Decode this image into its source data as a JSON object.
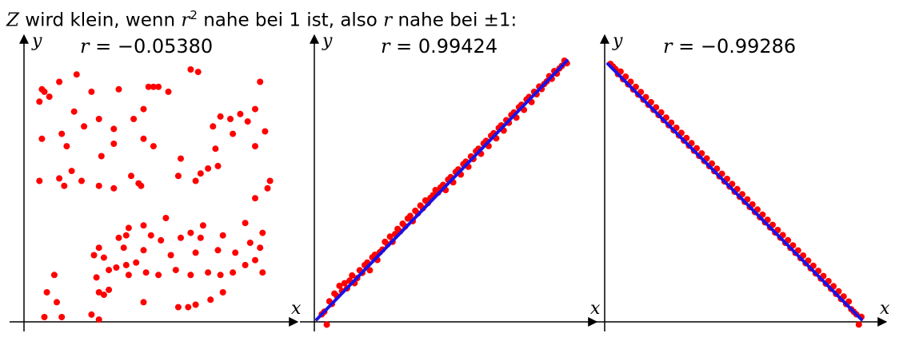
{
  "caption": {
    "pre": "Z",
    "t1": " wird klein, wenn ",
    "r": "r",
    "exp": "2",
    "t2": " nahe bei 1 ist, also ",
    "r2": "r",
    "t3": " nahe bei ±1:"
  },
  "chart_data": [
    {
      "type": "scatter",
      "title": "r = −0.05380",
      "r_symbol": "r",
      "r_text": "= −0.05380",
      "xlabel": "x",
      "ylabel": "y",
      "xlim": [
        0,
        1
      ],
      "ylim": [
        0,
        1
      ],
      "regression_line": false,
      "point_color": "#ff0000",
      "points": [
        [
          0.03,
          0.87
        ],
        [
          0.04,
          0.92
        ],
        [
          0.05,
          0.91
        ],
        [
          0.07,
          0.89
        ],
        [
          0.11,
          0.95
        ],
        [
          0.18,
          0.98
        ],
        [
          0.24,
          0.91
        ],
        [
          0.35,
          0.92
        ],
        [
          0.47,
          0.93
        ],
        [
          0.49,
          0.93
        ],
        [
          0.51,
          0.93
        ],
        [
          0.55,
          0.91
        ],
        [
          0.64,
          1.0
        ],
        [
          0.67,
          0.99
        ],
        [
          0.92,
          0.95
        ],
        [
          0.04,
          0.72
        ],
        [
          0.12,
          0.74
        ],
        [
          0.17,
          0.83
        ],
        [
          0.27,
          0.8
        ],
        [
          0.33,
          0.76
        ],
        [
          0.41,
          0.8
        ],
        [
          0.45,
          0.84
        ],
        [
          0.73,
          0.77
        ],
        [
          0.76,
          0.81
        ],
        [
          0.8,
          0.8
        ],
        [
          0.84,
          0.82
        ],
        [
          0.87,
          0.79
        ],
        [
          0.9,
          0.84
        ],
        [
          0.94,
          0.75
        ],
        [
          0.14,
          0.69
        ],
        [
          0.21,
          0.77
        ],
        [
          0.28,
          0.65
        ],
        [
          0.33,
          0.7
        ],
        [
          0.45,
          0.72
        ],
        [
          0.49,
          0.69
        ],
        [
          0.6,
          0.64
        ],
        [
          0.74,
          0.68
        ],
        [
          0.81,
          0.74
        ],
        [
          0.9,
          0.69
        ],
        [
          0.03,
          0.55
        ],
        [
          0.11,
          0.56
        ],
        [
          0.13,
          0.53
        ],
        [
          0.16,
          0.59
        ],
        [
          0.2,
          0.55
        ],
        [
          0.27,
          0.53
        ],
        [
          0.33,
          0.52
        ],
        [
          0.4,
          0.57
        ],
        [
          0.43,
          0.54
        ],
        [
          0.44,
          0.53
        ],
        [
          0.59,
          0.57
        ],
        [
          0.66,
          0.55
        ],
        [
          0.68,
          0.58
        ],
        [
          0.71,
          0.6
        ],
        [
          0.75,
          0.61
        ],
        [
          0.9,
          0.48
        ],
        [
          0.95,
          0.52
        ],
        [
          0.96,
          0.55
        ],
        [
          0.39,
          0.36
        ],
        [
          0.45,
          0.37
        ],
        [
          0.54,
          0.4
        ],
        [
          0.64,
          0.34
        ],
        [
          0.69,
          0.37
        ],
        [
          0.86,
          0.38
        ],
        [
          0.35,
          0.32
        ],
        [
          0.38,
          0.33
        ],
        [
          0.48,
          0.33
        ],
        [
          0.52,
          0.31
        ],
        [
          0.6,
          0.32
        ],
        [
          0.68,
          0.32
        ],
        [
          0.77,
          0.33
        ],
        [
          0.93,
          0.34
        ],
        [
          0.27,
          0.28
        ],
        [
          0.37,
          0.28
        ],
        [
          0.45,
          0.27
        ],
        [
          0.56,
          0.25
        ],
        [
          0.66,
          0.26
        ],
        [
          0.75,
          0.27
        ],
        [
          0.82,
          0.26
        ],
        [
          0.88,
          0.3
        ],
        [
          0.92,
          0.28
        ],
        [
          0.25,
          0.25
        ],
        [
          0.29,
          0.24
        ],
        [
          0.34,
          0.2
        ],
        [
          0.38,
          0.21
        ],
        [
          0.42,
          0.22
        ],
        [
          0.26,
          0.16
        ],
        [
          0.31,
          0.19
        ],
        [
          0.39,
          0.17
        ],
        [
          0.46,
          0.18
        ],
        [
          0.51,
          0.17
        ],
        [
          0.58,
          0.19
        ],
        [
          0.64,
          0.17
        ],
        [
          0.71,
          0.18
        ],
        [
          0.76,
          0.17
        ],
        [
          0.81,
          0.18
        ],
        [
          0.86,
          0.21
        ],
        [
          0.9,
          0.23
        ],
        [
          0.93,
          0.18
        ],
        [
          0.09,
          0.17
        ],
        [
          0.06,
          0.1
        ],
        [
          0.1,
          0.06
        ],
        [
          0.27,
          0.1
        ],
        [
          0.29,
          0.09
        ],
        [
          0.31,
          0.11
        ],
        [
          0.45,
          0.06
        ],
        [
          0.59,
          0.04
        ],
        [
          0.63,
          0.04
        ],
        [
          0.66,
          0.05
        ],
        [
          0.72,
          0.07
        ],
        [
          0.05,
          0.0
        ],
        [
          0.12,
          0.0
        ],
        [
          0.24,
          0.01
        ],
        [
          0.27,
          -0.01
        ],
        [
          0.77,
          0.1
        ]
      ]
    },
    {
      "type": "scatter",
      "title": "r = 0.99424",
      "r_symbol": "r",
      "r_text": "= 0.99424",
      "xlabel": "x",
      "ylabel": "y",
      "xlim": [
        0,
        1
      ],
      "ylim": [
        0,
        1
      ],
      "regression_line": true,
      "line_color": "#1a12e6",
      "line": [
        [
          0,
          0
        ],
        [
          0.99,
          1.0
        ]
      ],
      "point_color": "#ff0000",
      "points": [
        [
          0.02,
          0.02
        ],
        [
          0.03,
          0.03
        ],
        [
          0.04,
          -0.02
        ],
        [
          0.05,
          0.07
        ],
        [
          0.06,
          0.06
        ],
        [
          0.07,
          0.1
        ],
        [
          0.08,
          0.09
        ],
        [
          0.09,
          0.13
        ],
        [
          0.1,
          0.11
        ],
        [
          0.11,
          0.14
        ],
        [
          0.12,
          0.12
        ],
        [
          0.13,
          0.15
        ],
        [
          0.14,
          0.17
        ],
        [
          0.15,
          0.14
        ],
        [
          0.16,
          0.16
        ],
        [
          0.17,
          0.19
        ],
        [
          0.18,
          0.18
        ],
        [
          0.19,
          0.21
        ],
        [
          0.2,
          0.22
        ],
        [
          0.21,
          0.19
        ],
        [
          0.22,
          0.24
        ],
        [
          0.23,
          0.25
        ],
        [
          0.24,
          0.23
        ],
        [
          0.25,
          0.26
        ],
        [
          0.26,
          0.27
        ],
        [
          0.27,
          0.3
        ],
        [
          0.28,
          0.29
        ],
        [
          0.29,
          0.32
        ],
        [
          0.3,
          0.3
        ],
        [
          0.31,
          0.33
        ],
        [
          0.32,
          0.35
        ],
        [
          0.33,
          0.34
        ],
        [
          0.34,
          0.37
        ],
        [
          0.35,
          0.36
        ],
        [
          0.36,
          0.39
        ],
        [
          0.37,
          0.4
        ],
        [
          0.38,
          0.38
        ],
        [
          0.39,
          0.42
        ],
        [
          0.4,
          0.41
        ],
        [
          0.41,
          0.44
        ],
        [
          0.42,
          0.43
        ],
        [
          0.43,
          0.46
        ],
        [
          0.44,
          0.45
        ],
        [
          0.45,
          0.47
        ],
        [
          0.46,
          0.48
        ],
        [
          0.47,
          0.5
        ],
        [
          0.48,
          0.49
        ],
        [
          0.49,
          0.51
        ],
        [
          0.5,
          0.52
        ],
        [
          0.51,
          0.5
        ],
        [
          0.52,
          0.54
        ],
        [
          0.53,
          0.55
        ],
        [
          0.54,
          0.53
        ],
        [
          0.55,
          0.57
        ],
        [
          0.56,
          0.58
        ],
        [
          0.57,
          0.56
        ],
        [
          0.58,
          0.6
        ],
        [
          0.59,
          0.61
        ],
        [
          0.6,
          0.59
        ],
        [
          0.61,
          0.63
        ],
        [
          0.62,
          0.62
        ],
        [
          0.63,
          0.65
        ],
        [
          0.64,
          0.66
        ],
        [
          0.65,
          0.64
        ],
        [
          0.66,
          0.68
        ],
        [
          0.67,
          0.69
        ],
        [
          0.68,
          0.67
        ],
        [
          0.69,
          0.71
        ],
        [
          0.7,
          0.72
        ],
        [
          0.71,
          0.7
        ],
        [
          0.72,
          0.74
        ],
        [
          0.73,
          0.75
        ],
        [
          0.74,
          0.73
        ],
        [
          0.75,
          0.77
        ],
        [
          0.76,
          0.76
        ],
        [
          0.77,
          0.79
        ],
        [
          0.78,
          0.8
        ],
        [
          0.79,
          0.78
        ],
        [
          0.8,
          0.82
        ],
        [
          0.81,
          0.83
        ],
        [
          0.82,
          0.81
        ],
        [
          0.83,
          0.85
        ],
        [
          0.84,
          0.86
        ],
        [
          0.85,
          0.84
        ],
        [
          0.86,
          0.88
        ],
        [
          0.87,
          0.87
        ],
        [
          0.88,
          0.9
        ],
        [
          0.89,
          0.89
        ],
        [
          0.9,
          0.91
        ],
        [
          0.91,
          0.92
        ],
        [
          0.92,
          0.94
        ],
        [
          0.93,
          0.93
        ],
        [
          0.94,
          0.96
        ],
        [
          0.95,
          0.95
        ],
        [
          0.96,
          0.97
        ],
        [
          0.97,
          0.98
        ],
        [
          0.98,
          1.0
        ],
        [
          0.99,
          0.99
        ]
      ]
    },
    {
      "type": "scatter",
      "title": "r = −0.99286",
      "r_symbol": "r",
      "r_text": "= −0.99286",
      "xlabel": "x",
      "ylabel": "y",
      "xlim": [
        0,
        1
      ],
      "ylim": [
        0,
        1
      ],
      "regression_line": true,
      "line_color": "#1a12e6",
      "line": [
        [
          0,
          1.0
        ],
        [
          1.0,
          0
        ]
      ],
      "point_color": "#ff0000",
      "points": [
        [
          0.01,
          1.0
        ],
        [
          0.02,
          0.99
        ],
        [
          0.03,
          0.98
        ],
        [
          0.04,
          0.96
        ],
        [
          0.05,
          0.97
        ],
        [
          0.06,
          0.94
        ],
        [
          0.07,
          0.95
        ],
        [
          0.08,
          0.92
        ],
        [
          0.09,
          0.93
        ],
        [
          0.1,
          0.9
        ],
        [
          0.11,
          0.91
        ],
        [
          0.12,
          0.88
        ],
        [
          0.13,
          0.89
        ],
        [
          0.14,
          0.86
        ],
        [
          0.15,
          0.87
        ],
        [
          0.16,
          0.84
        ],
        [
          0.17,
          0.85
        ],
        [
          0.18,
          0.82
        ],
        [
          0.19,
          0.83
        ],
        [
          0.2,
          0.8
        ],
        [
          0.21,
          0.81
        ],
        [
          0.22,
          0.78
        ],
        [
          0.23,
          0.79
        ],
        [
          0.24,
          0.76
        ],
        [
          0.25,
          0.77
        ],
        [
          0.26,
          0.74
        ],
        [
          0.27,
          0.75
        ],
        [
          0.28,
          0.72
        ],
        [
          0.29,
          0.73
        ],
        [
          0.3,
          0.7
        ],
        [
          0.31,
          0.71
        ],
        [
          0.32,
          0.68
        ],
        [
          0.33,
          0.69
        ],
        [
          0.34,
          0.66
        ],
        [
          0.35,
          0.67
        ],
        [
          0.36,
          0.64
        ],
        [
          0.37,
          0.65
        ],
        [
          0.38,
          0.62
        ],
        [
          0.39,
          0.63
        ],
        [
          0.4,
          0.6
        ],
        [
          0.41,
          0.61
        ],
        [
          0.42,
          0.58
        ],
        [
          0.43,
          0.59
        ],
        [
          0.44,
          0.56
        ],
        [
          0.45,
          0.57
        ],
        [
          0.46,
          0.54
        ],
        [
          0.47,
          0.55
        ],
        [
          0.48,
          0.52
        ],
        [
          0.49,
          0.53
        ],
        [
          0.5,
          0.5
        ],
        [
          0.51,
          0.51
        ],
        [
          0.52,
          0.48
        ],
        [
          0.53,
          0.49
        ],
        [
          0.54,
          0.46
        ],
        [
          0.55,
          0.47
        ],
        [
          0.56,
          0.44
        ],
        [
          0.57,
          0.45
        ],
        [
          0.58,
          0.42
        ],
        [
          0.59,
          0.43
        ],
        [
          0.6,
          0.4
        ],
        [
          0.61,
          0.41
        ],
        [
          0.62,
          0.38
        ],
        [
          0.63,
          0.39
        ],
        [
          0.64,
          0.36
        ],
        [
          0.65,
          0.37
        ],
        [
          0.66,
          0.34
        ],
        [
          0.67,
          0.35
        ],
        [
          0.68,
          0.32
        ],
        [
          0.69,
          0.33
        ],
        [
          0.7,
          0.3
        ],
        [
          0.71,
          0.31
        ],
        [
          0.72,
          0.28
        ],
        [
          0.73,
          0.29
        ],
        [
          0.74,
          0.26
        ],
        [
          0.75,
          0.27
        ],
        [
          0.76,
          0.24
        ],
        [
          0.77,
          0.25
        ],
        [
          0.78,
          0.22
        ],
        [
          0.79,
          0.23
        ],
        [
          0.8,
          0.2
        ],
        [
          0.81,
          0.21
        ],
        [
          0.82,
          0.18
        ],
        [
          0.83,
          0.19
        ],
        [
          0.84,
          0.16
        ],
        [
          0.85,
          0.17
        ],
        [
          0.86,
          0.14
        ],
        [
          0.87,
          0.15
        ],
        [
          0.88,
          0.12
        ],
        [
          0.89,
          0.13
        ],
        [
          0.9,
          0.1
        ],
        [
          0.91,
          0.11
        ],
        [
          0.92,
          0.08
        ],
        [
          0.93,
          0.09
        ],
        [
          0.94,
          0.06
        ],
        [
          0.95,
          0.07
        ],
        [
          0.96,
          0.04
        ],
        [
          0.97,
          0.03
        ],
        [
          0.98,
          0.02
        ],
        [
          0.99,
          -0.02
        ],
        [
          1.0,
          0.01
        ]
      ]
    }
  ]
}
